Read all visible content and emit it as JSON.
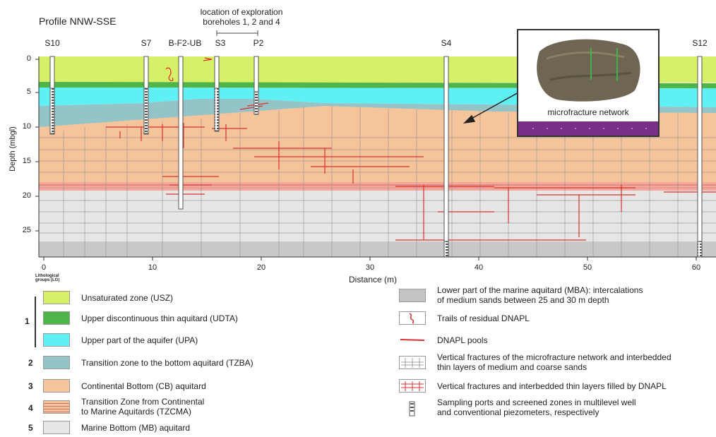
{
  "title": "Profile NNW-SSE",
  "exploration_note": "location of exploration boreholes 1, 2 and 4",
  "wells": [
    "S10",
    "S7",
    "B-F2-UB",
    "S3",
    "P2",
    "S4",
    "S12"
  ],
  "y_axis": {
    "label": "Depth (mbgl)",
    "ticks": [
      "0",
      "5",
      "10",
      "15",
      "20",
      "25"
    ]
  },
  "x_axis": {
    "label": "Distance (m)",
    "ticks": [
      "0",
      "10",
      "20",
      "30",
      "40",
      "50",
      "60"
    ]
  },
  "photo_caption": "microfracture network",
  "legend_header": "Lithological groups (LG)",
  "legend_left": [
    {
      "group": "",
      "text": "Unsaturated zone (USZ)",
      "color": "#d6f06a"
    },
    {
      "group": "",
      "text": "Upper discontinuous thin aquitard (UDTA)",
      "color": "#4fb548"
    },
    {
      "group": "",
      "text": "Upper part of the aquifer (UPA)",
      "color": "#5ef0f2"
    },
    {
      "group": "2",
      "text": "Transition zone to the bottom aquitard (TZBA)",
      "color": "#95c4c8"
    },
    {
      "group": "3",
      "text": "Continental Bottom (CB) aquitard",
      "color": "#f6c49a"
    },
    {
      "group": "4",
      "text": "Transition Zone from Continental\nto Marine Aquitards (TZCMA)",
      "color": "#f2a99a"
    },
    {
      "group": "5",
      "text": "Marine Bottom (MB) aquitard",
      "color": "#e6e6e6"
    }
  ],
  "group_1_label": "1",
  "legend_right": [
    {
      "text": "Lower part of the marine aquitard (MBA): intercalations\nof medium sands between 25 and 30 m depth",
      "icon": "gray-box"
    },
    {
      "text": "Trails of residual DNAPL",
      "icon": "red-trail"
    },
    {
      "text": "DNAPL pools",
      "icon": "red-pool"
    },
    {
      "text": "Vertical fractures of the microfracture network and interbedded\nthin layers of medium and coarse sands",
      "icon": "gray-fractures"
    },
    {
      "text": "Vertical fractures and interbedded thin layers filled by DNAPL",
      "icon": "red-fractures"
    },
    {
      "text": "Sampling ports and screened zones in multilevel well\nand conventional piezometers, respectively",
      "icon": "well-ports"
    }
  ]
}
